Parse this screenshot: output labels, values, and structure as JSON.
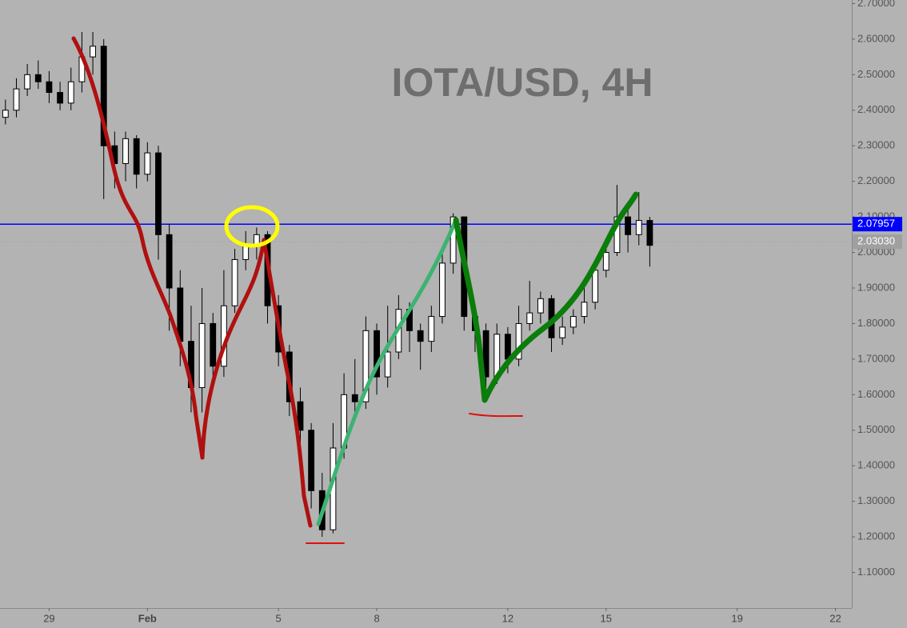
{
  "chart_data": {
    "type": "candlestick",
    "title": "IOTA/USD, 4H",
    "open": [
      2.38,
      2.4,
      2.46,
      2.5,
      2.48,
      2.45,
      2.42,
      2.48,
      2.55,
      2.58,
      2.3,
      2.25,
      2.32,
      2.22,
      2.28,
      2.05,
      1.9,
      1.75,
      1.62,
      1.8,
      1.68,
      1.85,
      1.98,
      2.02,
      2.05,
      1.85,
      1.72,
      1.58,
      1.5,
      1.33,
      1.22,
      1.45,
      1.6,
      1.58,
      1.78,
      1.65,
      1.72,
      1.84,
      1.78,
      1.75,
      1.82,
      1.97,
      2.1,
      1.82,
      1.78,
      1.65,
      1.77,
      1.7,
      1.8,
      1.83,
      1.87,
      1.76,
      1.79,
      1.82,
      1.86,
      1.95,
      2.0,
      2.1,
      2.05,
      2.09
    ],
    "high": [
      2.43,
      2.49,
      2.53,
      2.54,
      2.51,
      2.48,
      2.52,
      2.62,
      2.62,
      2.6,
      2.34,
      2.34,
      2.33,
      2.31,
      2.3,
      2.08,
      1.95,
      1.85,
      1.9,
      1.83,
      1.95,
      2.01,
      2.06,
      2.07,
      2.06,
      1.88,
      1.74,
      1.62,
      1.52,
      1.38,
      1.52,
      1.66,
      1.7,
      1.82,
      1.8,
      1.85,
      1.88,
      1.86,
      1.8,
      1.85,
      2.0,
      2.11,
      2.1,
      1.85,
      1.8,
      1.8,
      1.79,
      1.85,
      1.92,
      1.89,
      1.88,
      1.82,
      1.84,
      1.9,
      1.98,
      2.04,
      2.19,
      2.14,
      2.17,
      2.1
    ],
    "low": [
      2.36,
      2.38,
      2.44,
      2.46,
      2.42,
      2.4,
      2.4,
      2.45,
      2.5,
      2.15,
      2.18,
      2.2,
      2.18,
      2.2,
      1.98,
      1.78,
      1.68,
      1.55,
      1.55,
      1.63,
      1.65,
      1.83,
      1.95,
      1.98,
      1.8,
      1.68,
      1.54,
      1.46,
      1.28,
      1.2,
      1.21,
      1.42,
      1.55,
      1.56,
      1.6,
      1.62,
      1.7,
      1.72,
      1.67,
      1.72,
      1.8,
      1.94,
      1.78,
      1.72,
      1.58,
      1.63,
      1.66,
      1.68,
      1.78,
      1.8,
      1.72,
      1.74,
      1.77,
      1.8,
      1.84,
      1.93,
      1.99,
      2.0,
      2.02,
      1.96
    ],
    "close": [
      2.4,
      2.46,
      2.5,
      2.48,
      2.45,
      2.42,
      2.48,
      2.55,
      2.58,
      2.3,
      2.25,
      2.32,
      2.22,
      2.28,
      2.05,
      1.9,
      1.75,
      1.62,
      1.8,
      1.68,
      1.85,
      1.98,
      2.02,
      2.05,
      1.85,
      1.72,
      1.58,
      1.5,
      1.33,
      1.22,
      1.45,
      1.6,
      1.58,
      1.78,
      1.65,
      1.72,
      1.84,
      1.78,
      1.75,
      1.82,
      1.97,
      2.1,
      1.82,
      1.78,
      1.65,
      1.77,
      1.7,
      1.8,
      1.83,
      1.87,
      1.76,
      1.79,
      1.82,
      1.86,
      1.95,
      2.0,
      2.1,
      2.05,
      2.09,
      2.02
    ],
    "up_color": "#ffffff",
    "down_color": "#000000",
    "xlim": [
      0,
      78
    ],
    "xticks": [
      {
        "value": 4.5,
        "label": "29"
      },
      {
        "value": 13.5,
        "label": "Feb"
      },
      {
        "value": 25.5,
        "label": "5"
      },
      {
        "value": 34.5,
        "label": "8"
      },
      {
        "value": 46.5,
        "label": "12"
      },
      {
        "value": 55.5,
        "label": "15"
      },
      {
        "value": 67.5,
        "label": "19"
      },
      {
        "value": 76.5,
        "label": "22"
      }
    ],
    "ylim": [
      1.0,
      2.71
    ],
    "yticks": [
      {
        "value": 1.1,
        "label": "1.10000"
      },
      {
        "value": 1.2,
        "label": "1.20000"
      },
      {
        "value": 1.3,
        "label": "1.30000"
      },
      {
        "value": 1.4,
        "label": "1.40000"
      },
      {
        "value": 1.5,
        "label": "1.50000"
      },
      {
        "value": 1.6,
        "label": "1.60000"
      },
      {
        "value": 1.7,
        "label": "1.70000"
      },
      {
        "value": 1.8,
        "label": "1.80000"
      },
      {
        "value": 1.9,
        "label": "1.90000"
      },
      {
        "value": 2.0,
        "label": "2.00000"
      },
      {
        "value": 2.1,
        "label": "2.10000"
      },
      {
        "value": 2.2,
        "label": "2.20000"
      },
      {
        "value": 2.3,
        "label": "2.30000"
      },
      {
        "value": 2.4,
        "label": "2.40000"
      },
      {
        "value": 2.5,
        "label": "2.50000"
      },
      {
        "value": 2.6,
        "label": "2.60000"
      },
      {
        "value": 2.7,
        "label": "2.70000"
      }
    ],
    "price_lines": [
      {
        "value": 2.0303,
        "label": "2.03030",
        "color": "#a0a0a0",
        "dashed": true
      },
      {
        "value": 2.07957,
        "label": "2.07957",
        "color": "#0000ff",
        "dashed": false
      }
    ]
  }
}
